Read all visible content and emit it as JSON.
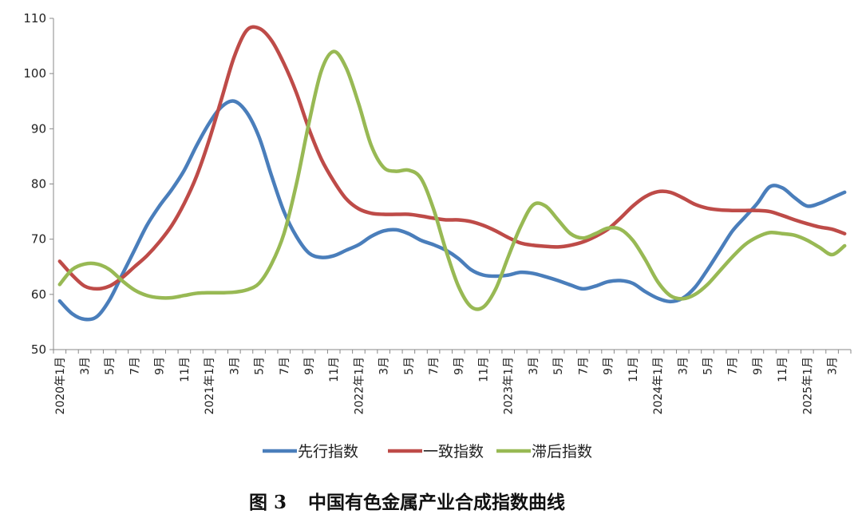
{
  "chart_data": {
    "type": "line",
    "title": "",
    "xlabel": "",
    "ylabel": "",
    "ylim": [
      50,
      110
    ],
    "yticks": [
      50,
      60,
      70,
      80,
      90,
      100,
      110
    ],
    "grid": false,
    "legend_position": "bottom",
    "categories": [
      "2020年1月",
      "2月",
      "3月",
      "4月",
      "5月",
      "6月",
      "7月",
      "8月",
      "9月",
      "10月",
      "11月",
      "12月",
      "2021年1月",
      "2月",
      "3月",
      "4月",
      "5月",
      "6月",
      "7月",
      "8月",
      "9月",
      "10月",
      "11月",
      "12月",
      "2022年1月",
      "2月",
      "3月",
      "4月",
      "5月",
      "6月",
      "7月",
      "8月",
      "9月",
      "10月",
      "11月",
      "12月",
      "2023年1月",
      "2月",
      "3月",
      "4月",
      "5月",
      "6月",
      "7月",
      "8月",
      "9月",
      "10月",
      "11月",
      "12月",
      "2024年1月",
      "2月",
      "3月",
      "4月",
      "5月",
      "6月",
      "7月",
      "8月",
      "9月",
      "10月",
      "11月",
      "12月",
      "2025年1月",
      "2月",
      "3月",
      "4月"
    ],
    "x_tick_labels": [
      "2020年1月",
      "3月",
      "5月",
      "7月",
      "9月",
      "11月",
      "2021年1月",
      "3月",
      "5月",
      "7月",
      "9月",
      "11月",
      "2022年1月",
      "3月",
      "5月",
      "7月",
      "9月",
      "11月",
      "2023年1月",
      "3月",
      "5月",
      "7月",
      "9月",
      "11月",
      "2024年1月",
      "3月",
      "5月",
      "7月",
      "9月",
      "11月",
      "2025年1月",
      "3月"
    ],
    "series": [
      {
        "name": "先行指数",
        "color": "#4a7ebb",
        "values": [
          58.8,
          56.5,
          55.5,
          56.0,
          59.0,
          63.5,
          68.0,
          72.5,
          76.0,
          79.0,
          82.5,
          87.0,
          91.0,
          94.0,
          95.0,
          93.0,
          88.5,
          81.5,
          75.0,
          70.5,
          67.5,
          66.7,
          67.0,
          68.0,
          69.0,
          70.5,
          71.5,
          71.7,
          71.0,
          69.8,
          69.0,
          68.0,
          66.5,
          64.5,
          63.5,
          63.3,
          63.5,
          64.0,
          63.8,
          63.2,
          62.5,
          61.7,
          61.0,
          61.5,
          62.3,
          62.5,
          62.0,
          60.5,
          59.3,
          58.7,
          59.3,
          61.3,
          64.5,
          68.0,
          71.5,
          74.0,
          76.5,
          79.5,
          79.3,
          77.5,
          76.0,
          76.5,
          77.5,
          78.5
        ]
      },
      {
        "name": "一致指数",
        "color": "#be4b48",
        "values": [
          66.0,
          63.5,
          61.5,
          61.0,
          61.5,
          63.0,
          65.0,
          67.0,
          69.5,
          72.5,
          76.5,
          81.5,
          88.0,
          95.5,
          103.0,
          107.8,
          108.2,
          106.0,
          101.8,
          96.5,
          90.0,
          84.5,
          80.5,
          77.3,
          75.5,
          74.7,
          74.5,
          74.5,
          74.5,
          74.2,
          73.8,
          73.5,
          73.5,
          73.2,
          72.5,
          71.5,
          70.3,
          69.3,
          68.9,
          68.7,
          68.6,
          68.9,
          69.5,
          70.5,
          71.8,
          73.8,
          76.0,
          77.7,
          78.6,
          78.5,
          77.5,
          76.3,
          75.6,
          75.3,
          75.2,
          75.2,
          75.2,
          75.0,
          74.3,
          73.5,
          72.8,
          72.2,
          71.8,
          71.0
        ]
      },
      {
        "name": "滞后指数",
        "color": "#98b954",
        "values": [
          61.8,
          64.5,
          65.5,
          65.5,
          64.5,
          62.5,
          60.8,
          59.8,
          59.4,
          59.4,
          59.8,
          60.2,
          60.3,
          60.3,
          60.4,
          60.8,
          62.0,
          65.5,
          71.0,
          80.0,
          91.0,
          100.5,
          104.0,
          101.0,
          94.5,
          87.0,
          83.0,
          82.3,
          82.5,
          81.0,
          75.5,
          68.0,
          61.5,
          57.8,
          57.7,
          61.0,
          66.8,
          72.3,
          76.2,
          76.0,
          73.5,
          71.0,
          70.2,
          71.0,
          72.0,
          71.8,
          69.8,
          66.3,
          62.3,
          59.8,
          59.2,
          60.0,
          61.8,
          64.3,
          66.8,
          69.0,
          70.4,
          71.2,
          71.0,
          70.7,
          69.8,
          68.5,
          67.2,
          68.8
        ]
      }
    ]
  },
  "caption": {
    "label": "图 3",
    "title": "中国有色金属产业合成指数曲线"
  }
}
